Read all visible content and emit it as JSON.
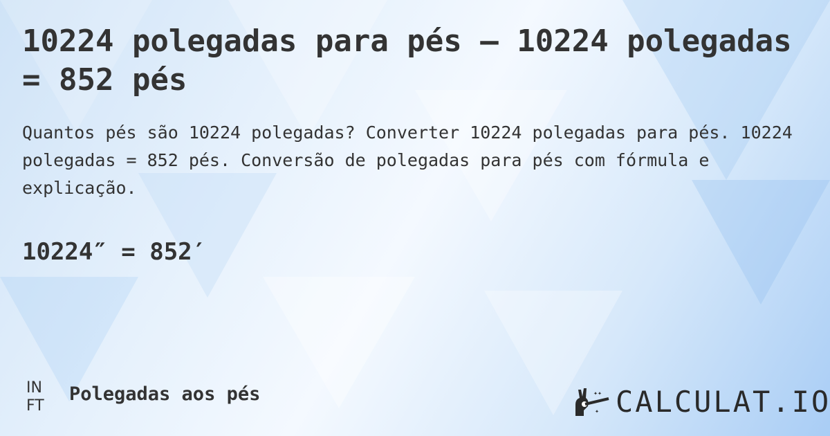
{
  "title": "10224 polegadas para pés — 10224 polegadas = 852 pés",
  "description": "Quantos pés são 10224 polegadas? Converter 10224 polegadas para pés. 10224 polegadas = 852 pés. Conversão de polegadas para pés com fórmula e explicação.",
  "formula": "10224″ = 852′",
  "units_icon": {
    "top": "IN",
    "bottom": "FT"
  },
  "category": "Polegadas aos pés",
  "logo": {
    "text": "CALCULAT.IO",
    "icon": "magic-hand-wand-icon"
  },
  "colors": {
    "text": "#333333",
    "background_light": "#f4f9ff",
    "background_accent": "#a9cdf5"
  }
}
